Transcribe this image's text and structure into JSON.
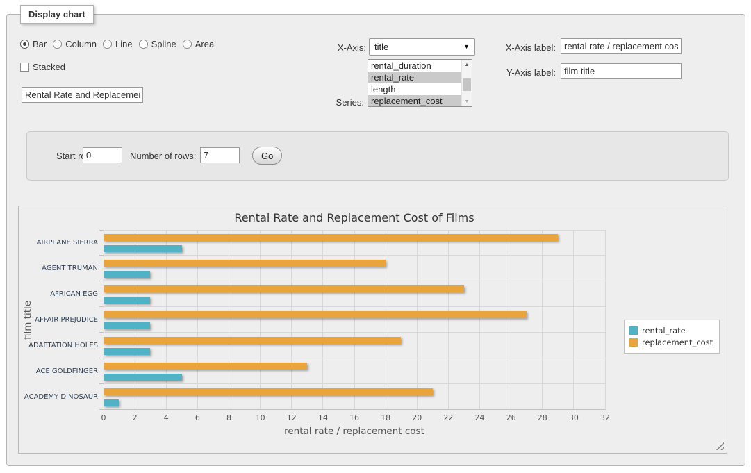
{
  "panel": {
    "legend": "Display chart"
  },
  "icons": {
    "select_arrow": "▼",
    "scroll_up": "▲",
    "scroll_down": "▼"
  },
  "controls": {
    "chart_types": {
      "options": [
        "Bar",
        "Column",
        "Line",
        "Spline",
        "Area"
      ],
      "selected": "Bar"
    },
    "stacked": {
      "label": "Stacked",
      "checked": false
    },
    "chart_title_input": {
      "value": "Rental Rate and Replacement Cost of Films"
    },
    "x_axis": {
      "label": "X-Axis:",
      "selected": "title"
    },
    "series": {
      "label": "Series:",
      "options": [
        {
          "label": "rental_duration",
          "selected": false
        },
        {
          "label": "rental_rate",
          "selected": true
        },
        {
          "label": "length",
          "selected": false
        },
        {
          "label": "replacement_cost",
          "selected": true
        }
      ]
    },
    "x_axis_label": {
      "label": "X-Axis label:",
      "value": "rental rate / replacement cost"
    },
    "y_axis_label": {
      "label": "Y-Axis label:",
      "value": "film title"
    }
  },
  "row_controls": {
    "start_row_label": "Start row:",
    "start_row_value": "0",
    "num_rows_label": "Number of rows:",
    "num_rows_value": "7",
    "go_label": "Go"
  },
  "chart_data": {
    "type": "bar",
    "orientation": "horizontal",
    "title": "Rental Rate and Replacement Cost of Films",
    "xlabel": "rental rate / replacement cost",
    "ylabel": "film title",
    "categories": [
      "AIRPLANE SIERRA",
      "AGENT TRUMAN",
      "AFRICAN EGG",
      "AFFAIR PREJUDICE",
      "ADAPTATION HOLES",
      "ACE GOLDFINGER",
      "ACADEMY DINOSAUR"
    ],
    "series": [
      {
        "name": "rental_rate",
        "color": "#4fb3c5",
        "values": [
          4.99,
          2.99,
          2.99,
          2.99,
          2.99,
          4.99,
          0.99
        ]
      },
      {
        "name": "replacement_cost",
        "color": "#e9a43c",
        "values": [
          28.99,
          17.99,
          22.99,
          26.99,
          18.99,
          12.99,
          20.99
        ]
      }
    ],
    "bar_draw_order": [
      "replacement_cost",
      "rental_rate"
    ],
    "value_axis": {
      "min": 0,
      "max": 32,
      "tick_step": 2
    },
    "legend_position": "right",
    "grid": true,
    "plot_background": "#eeeeee"
  }
}
